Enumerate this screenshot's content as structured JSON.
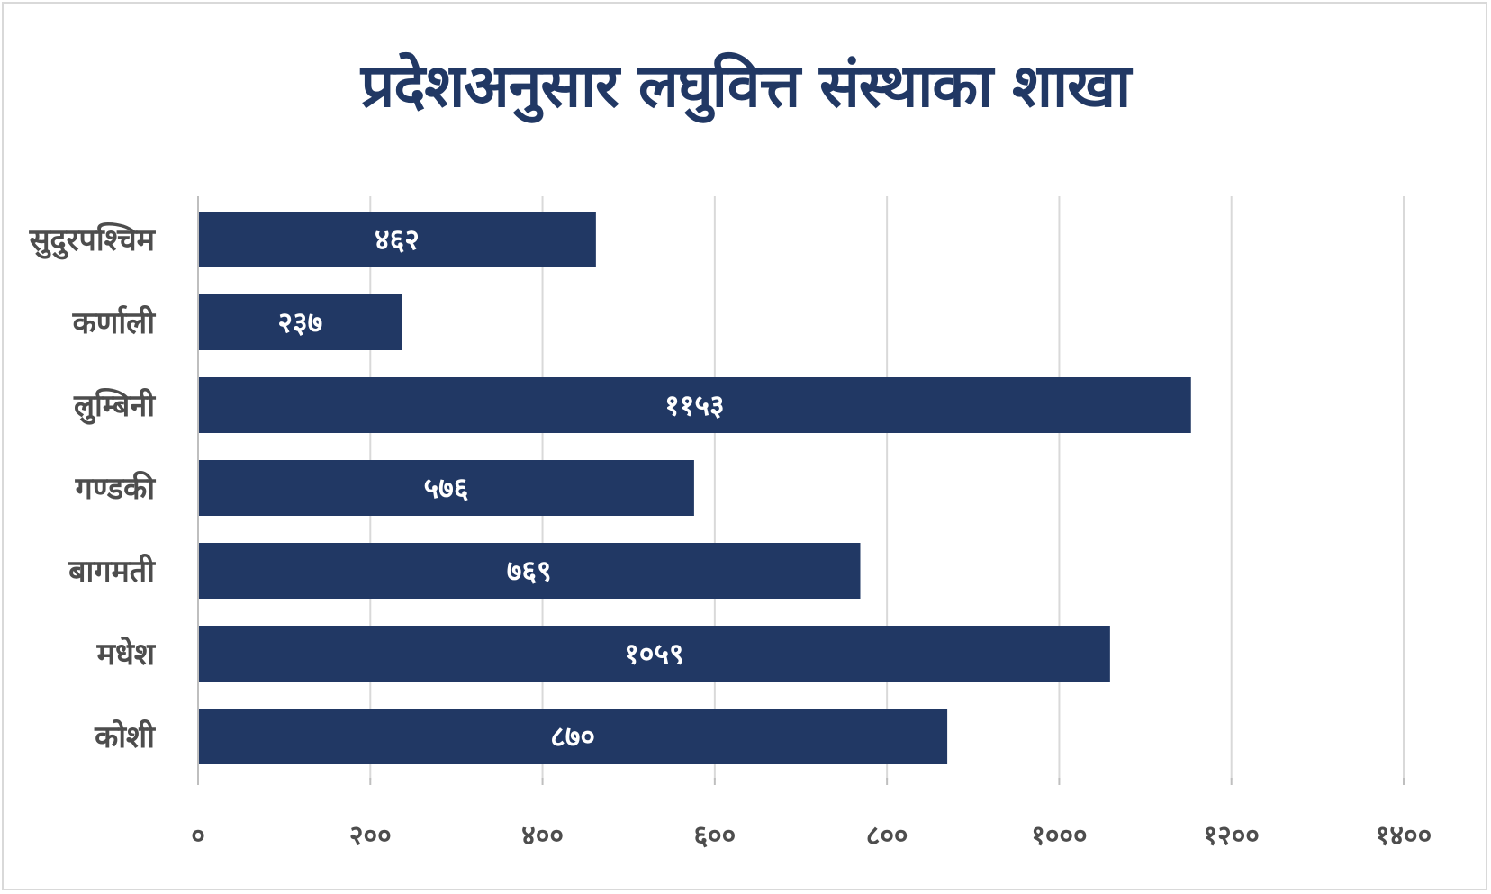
{
  "chart_data": {
    "type": "bar",
    "orientation": "horizontal",
    "title": "प्रदेशअनुसार लघुवित्त संस्थाका शाखा",
    "xlabel": "",
    "ylabel": "",
    "categories": [
      "सुदुरपश्चिम",
      "कर्णाली",
      "लुम्बिनी",
      "गण्डकी",
      "बागमती",
      "मधेश",
      "कोशी"
    ],
    "values": [
      462,
      237,
      1153,
      576,
      769,
      1059,
      870
    ],
    "value_labels": [
      "४६२",
      "२३७",
      "११५३",
      "५७६",
      "७६९",
      "१०५९",
      "८७०"
    ],
    "xlim": [
      0,
      1400
    ],
    "ticks": [
      0,
      200,
      400,
      600,
      800,
      1000,
      1200,
      1400
    ],
    "tick_labels": [
      "०",
      "२००",
      "४००",
      "६००",
      "८००",
      "१०००",
      "१२००",
      "१४००"
    ],
    "grid": true,
    "legend": "none",
    "bar_color": "#213864"
  }
}
